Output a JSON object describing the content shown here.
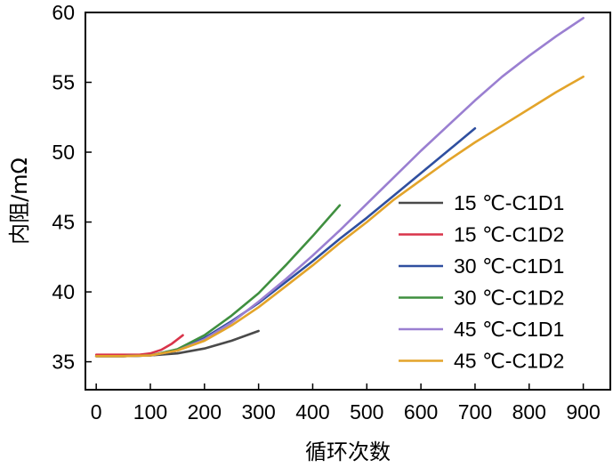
{
  "chart_data": {
    "type": "line",
    "title": "",
    "xlabel": "循环次数",
    "ylabel": "内阻/mΩ",
    "xlim": [
      -20,
      950
    ],
    "ylim": [
      33,
      60
    ],
    "xticks": [
      0,
      100,
      200,
      300,
      400,
      500,
      600,
      700,
      800,
      900
    ],
    "yticks": [
      35,
      40,
      45,
      50,
      55,
      60
    ],
    "grid": false,
    "legend_position": "lower-right",
    "series": [
      {
        "name": "15 ℃-C1D1",
        "color": "#4a4a4a",
        "x": [
          0,
          50,
          100,
          150,
          200,
          250,
          300
        ],
        "y": [
          35.4,
          35.4,
          35.45,
          35.6,
          35.95,
          36.5,
          37.2
        ]
      },
      {
        "name": "15 ℃-C1D2",
        "color": "#d9344a",
        "x": [
          0,
          50,
          80,
          100,
          120,
          140,
          160
        ],
        "y": [
          35.5,
          35.5,
          35.5,
          35.6,
          35.85,
          36.3,
          36.9
        ]
      },
      {
        "name": "30 ℃-C1D1",
        "color": "#2f4f9f",
        "x": [
          0,
          50,
          100,
          150,
          200,
          250,
          300,
          350,
          400,
          450,
          500,
          550,
          600,
          650,
          700
        ],
        "y": [
          35.4,
          35.4,
          35.45,
          35.8,
          36.7,
          37.9,
          39.2,
          40.7,
          42.2,
          43.8,
          45.3,
          46.9,
          48.5,
          50.1,
          51.7
        ]
      },
      {
        "name": "30 ℃-C1D2",
        "color": "#3f8f3f",
        "x": [
          0,
          50,
          100,
          150,
          200,
          250,
          300,
          350,
          400,
          450
        ],
        "y": [
          35.4,
          35.4,
          35.45,
          35.9,
          36.9,
          38.3,
          39.9,
          41.9,
          44.0,
          46.2
        ]
      },
      {
        "name": "45 ℃-C1D1",
        "color": "#9a7fd1",
        "x": [
          0,
          50,
          100,
          150,
          200,
          250,
          300,
          350,
          400,
          450,
          500,
          550,
          600,
          650,
          700,
          750,
          800,
          850,
          900
        ],
        "y": [
          35.4,
          35.4,
          35.45,
          35.8,
          36.6,
          37.8,
          39.3,
          40.9,
          42.6,
          44.4,
          46.3,
          48.2,
          50.1,
          51.9,
          53.7,
          55.4,
          56.9,
          58.3,
          59.6
        ]
      },
      {
        "name": "45 ℃-C1D2",
        "color": "#e3a42a",
        "x": [
          0,
          50,
          100,
          150,
          200,
          250,
          300,
          350,
          400,
          450,
          500,
          550,
          600,
          650,
          700,
          750,
          800,
          850,
          900
        ],
        "y": [
          35.4,
          35.4,
          35.45,
          35.8,
          36.5,
          37.6,
          38.9,
          40.4,
          41.9,
          43.5,
          45.0,
          46.6,
          48.0,
          49.4,
          50.7,
          51.9,
          53.1,
          54.3,
          55.4
        ]
      }
    ]
  }
}
